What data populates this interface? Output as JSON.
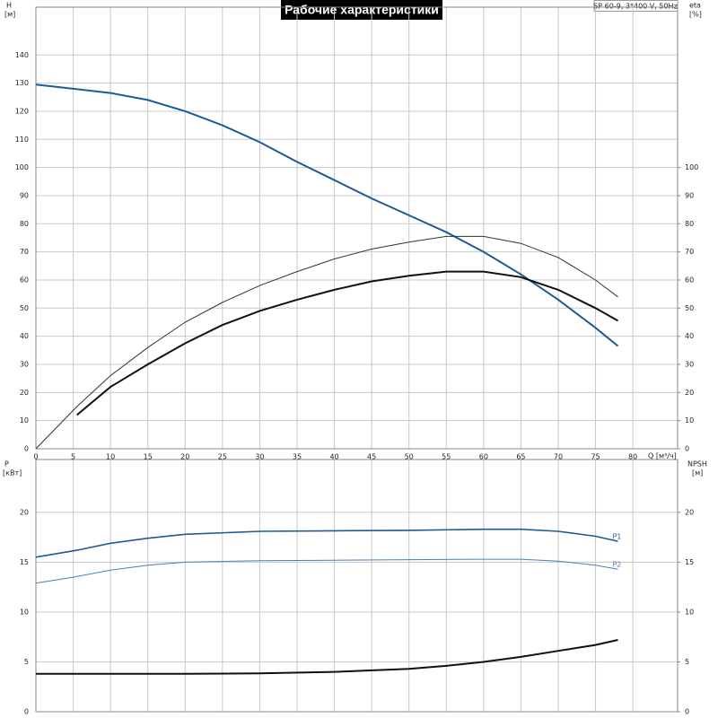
{
  "chart_data": [
    {
      "type": "line",
      "title": "Рабочие характеристики",
      "annotation": "SP 60-9, 3*400 V, 50Hz",
      "x_label": "Q [м³/ч]",
      "y_label": "H",
      "y_unit": "[м]",
      "y2_label": "eta",
      "y2_unit": "[%]",
      "xlim": [
        0,
        86
      ],
      "xticks": [
        0,
        5,
        10,
        15,
        20,
        25,
        30,
        35,
        40,
        45,
        50,
        55,
        60,
        65,
        70,
        75,
        80
      ],
      "ylim": [
        0,
        157
      ],
      "yticks": [
        0,
        10,
        20,
        30,
        40,
        50,
        60,
        70,
        80,
        90,
        100,
        110,
        120,
        130,
        140
      ],
      "y2lim": [
        0,
        157
      ],
      "y2ticks": [
        0,
        10,
        20,
        30,
        40,
        50,
        60,
        70,
        80,
        90,
        100
      ],
      "grid": true,
      "series": [
        {
          "color": "#1f5a96",
          "width": 2,
          "x": [
            0,
            5,
            10,
            15,
            20,
            25,
            30,
            35,
            40,
            45,
            50,
            55,
            60,
            65,
            70,
            75,
            78
          ],
          "values": [
            129.5,
            128,
            126.5,
            124,
            120,
            115,
            109,
            102,
            95.5,
            89,
            83,
            77,
            70,
            62,
            53,
            43,
            36.5
          ]
        },
        {
          "color": "#333333",
          "width": 1,
          "axis": "y2",
          "x": [
            0,
            5.5,
            10,
            15,
            20,
            25,
            30,
            35,
            40,
            45,
            50,
            55,
            60,
            65,
            70,
            75,
            78
          ],
          "values": [
            0,
            15,
            26,
            36,
            45,
            52,
            58,
            63,
            67.5,
            71,
            73.5,
            75.5,
            75.5,
            73,
            68,
            60,
            54
          ]
        },
        {
          "color": "#111111",
          "width": 2,
          "axis": "y2",
          "x": [
            5.5,
            10,
            15,
            20,
            25,
            30,
            35,
            40,
            45,
            50,
            55,
            60,
            65,
            70,
            75,
            78
          ],
          "values": [
            12,
            22,
            30,
            37.5,
            44,
            49,
            53,
            56.5,
            59.5,
            61.5,
            63,
            63,
            61,
            56.5,
            50,
            45.5
          ]
        }
      ]
    },
    {
      "type": "line",
      "y_label": "P",
      "y_unit": "[кВт]",
      "y2_label": "NPSH",
      "y2_unit": "[м]",
      "xlim": [
        0,
        86
      ],
      "xticks": [
        0,
        5,
        10,
        15,
        20,
        25,
        30,
        35,
        40,
        45,
        50,
        55,
        60,
        65,
        70,
        75,
        80
      ],
      "ylim": [
        0,
        25.3
      ],
      "yticks": [
        0,
        5,
        10,
        15,
        20
      ],
      "y2lim": [
        0,
        25.3
      ],
      "y2ticks": [
        0,
        5,
        10,
        15,
        20
      ],
      "grid": true,
      "series": [
        {
          "label": "P1",
          "color": "#1f5a96",
          "width": 1.6,
          "x": [
            0,
            5.5,
            10,
            15,
            20,
            30,
            40,
            50,
            60,
            65,
            70,
            75,
            78
          ],
          "values": [
            15.5,
            16.2,
            16.9,
            17.4,
            17.8,
            18.1,
            18.15,
            18.2,
            18.3,
            18.3,
            18.1,
            17.6,
            17.1
          ]
        },
        {
          "label": "P2",
          "color": "#4a7fb5",
          "width": 1,
          "x": [
            0,
            5,
            10,
            15,
            20,
            30,
            40,
            50,
            60,
            65,
            70,
            75,
            78
          ],
          "values": [
            12.9,
            13.5,
            14.2,
            14.7,
            15,
            15.15,
            15.2,
            15.25,
            15.3,
            15.3,
            15.1,
            14.7,
            14.3
          ]
        },
        {
          "color": "#111111",
          "width": 2,
          "axis": "y2",
          "x": [
            0,
            10,
            20,
            30,
            40,
            50,
            55,
            60,
            65,
            70,
            75,
            78
          ],
          "values": [
            3.8,
            3.8,
            3.8,
            3.85,
            4,
            4.3,
            4.6,
            5,
            5.5,
            6.1,
            6.7,
            7.2
          ]
        }
      ]
    }
  ]
}
